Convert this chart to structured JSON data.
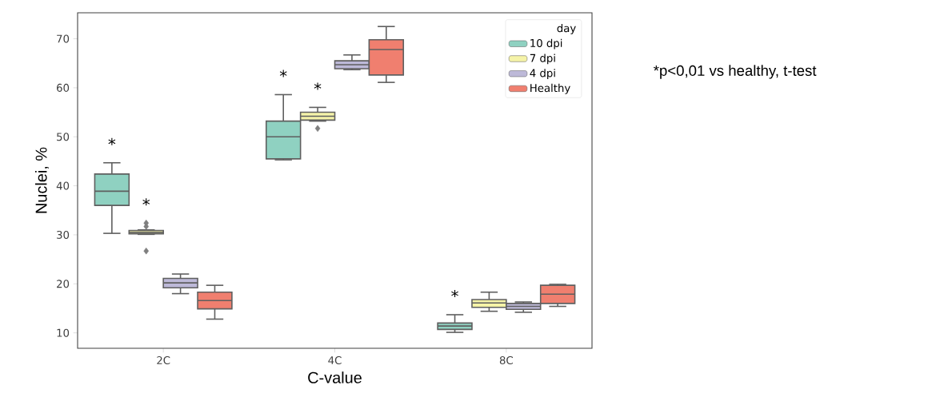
{
  "chart_data": {
    "type": "box",
    "xlabel": "C-value",
    "ylabel": "Nuclei, %",
    "legend_title": "day",
    "legend": "top right",
    "grid": false,
    "categories": [
      "2C",
      "4C",
      "8C"
    ],
    "ylim": [
      6.85,
      75.3
    ],
    "yticks": [
      10,
      20,
      30,
      40,
      50,
      60,
      70
    ],
    "series": [
      {
        "name": "10 dpi",
        "color": "#8fd1c1",
        "boxes": [
          {
            "low": 30.3,
            "q1": 36.0,
            "median": 38.9,
            "q3": 42.4,
            "high": 44.7
          },
          {
            "low": 45.3,
            "q1": 45.5,
            "median": 50.0,
            "q3": 53.2,
            "high": 58.6
          },
          {
            "low": 10.1,
            "q1": 10.7,
            "median": 11.4,
            "q3": 12.0,
            "high": 13.7
          }
        ]
      },
      {
        "name": "7 dpi",
        "color": "#f5f3a8",
        "boxes": [
          {
            "low": 30.1,
            "q1": 30.2,
            "median": 30.5,
            "q3": 30.9,
            "high": 31.0,
            "outliers": [
              32.4,
              31.7,
              26.7
            ]
          },
          {
            "low": 53.2,
            "q1": 53.4,
            "median": 54.2,
            "q3": 55.0,
            "high": 56.0,
            "outliers": [
              51.7
            ]
          },
          {
            "low": 14.4,
            "q1": 15.2,
            "median": 16.1,
            "q3": 16.8,
            "high": 18.3
          }
        ]
      },
      {
        "name": "4 dpi",
        "color": "#bdb9d8",
        "boxes": [
          {
            "low": 18.0,
            "q1": 19.2,
            "median": 20.2,
            "q3": 21.1,
            "high": 22.0
          },
          {
            "low": 63.7,
            "q1": 63.9,
            "median": 64.7,
            "q3": 65.5,
            "high": 66.7
          },
          {
            "low": 14.2,
            "q1": 14.8,
            "median": 15.4,
            "q3": 16.0,
            "high": 16.3
          }
        ]
      },
      {
        "name": "Healthy",
        "color": "#f07f6f",
        "boxes": [
          {
            "low": 12.8,
            "q1": 14.9,
            "median": 16.6,
            "q3": 18.3,
            "high": 19.7
          },
          {
            "low": 61.1,
            "q1": 62.6,
            "median": 67.8,
            "q3": 69.8,
            "high": 72.5
          },
          {
            "low": 15.4,
            "q1": 16.0,
            "median": 17.9,
            "q3": 19.7,
            "high": 19.9
          }
        ]
      }
    ],
    "annotations": [
      "*",
      "*",
      "*",
      "*",
      "*",
      "*p<0,01 vs healthy, t-test"
    ]
  }
}
